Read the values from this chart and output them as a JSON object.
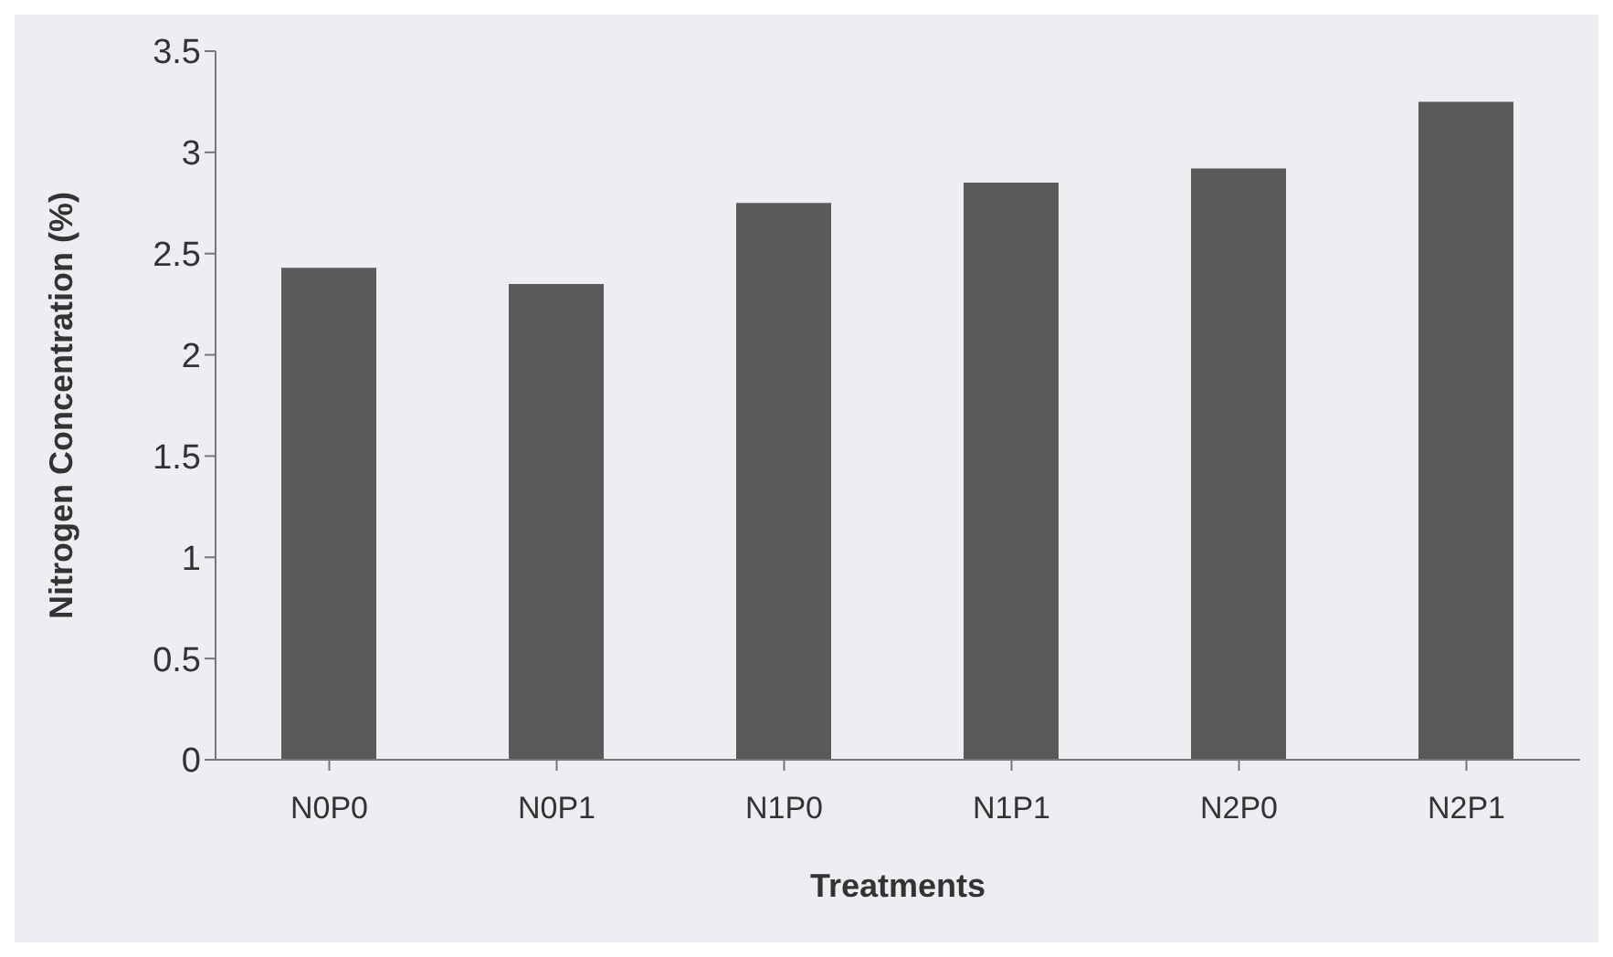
{
  "chart_data": {
    "type": "bar",
    "xlabel": "Treatments",
    "ylabel": "Nitrogen Concentration (%)",
    "categories": [
      "N0P0",
      "N0P1",
      "N1P0",
      "N1P1",
      "N2P0",
      "N2P1"
    ],
    "values": [
      2.43,
      2.35,
      2.75,
      2.85,
      2.92,
      3.25
    ],
    "color": "#5a5a5a",
    "ylim": [
      0,
      3.5
    ],
    "yticks": [
      0,
      0.5,
      1,
      1.5,
      2,
      2.5,
      3,
      3.5
    ],
    "grid": false
  }
}
